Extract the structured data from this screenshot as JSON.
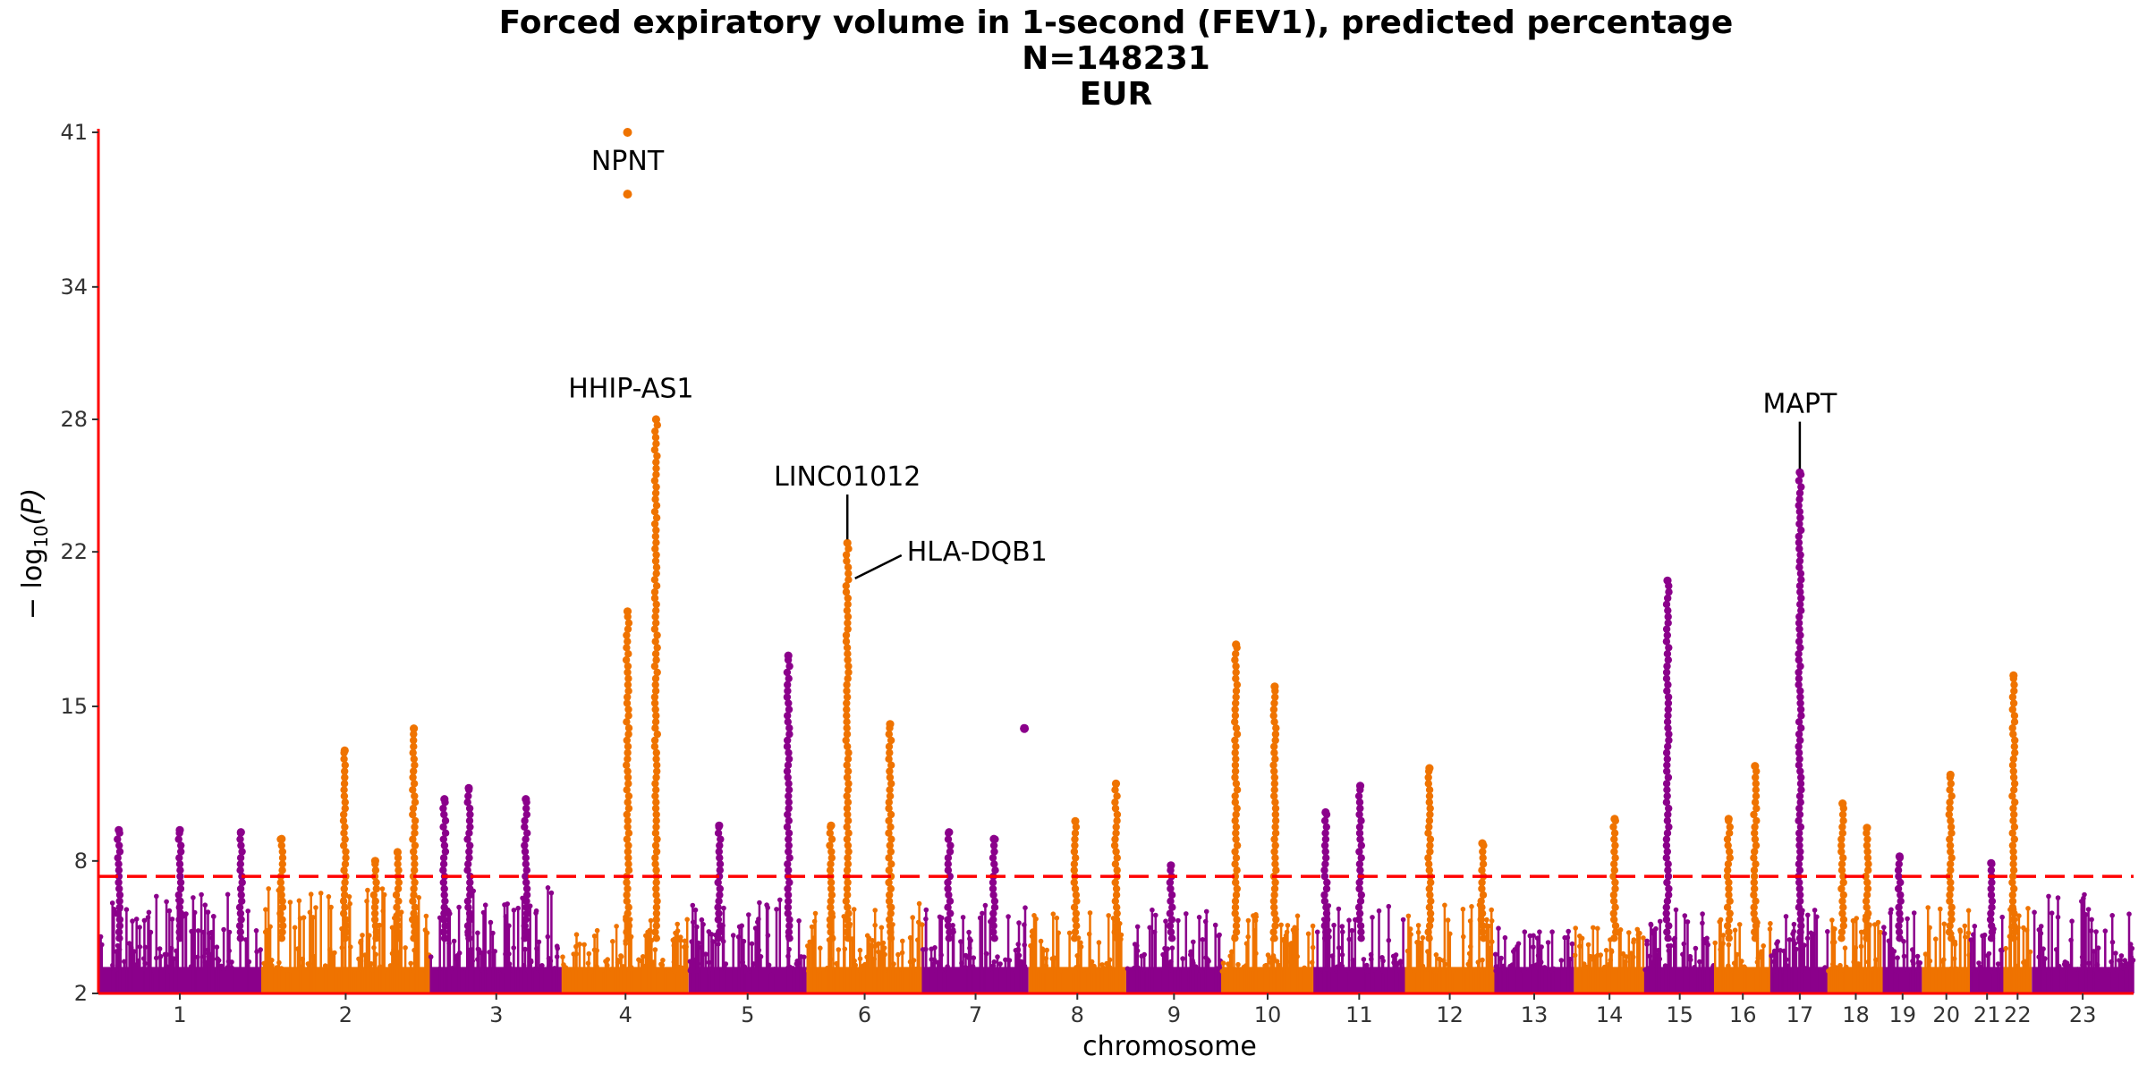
{
  "chart_data": {
    "type": "scatter",
    "subtype": "manhattan",
    "title": "Forced expiratory volume in 1-second (FEV1), predicted percentage",
    "subtitle_1": "N=148231",
    "subtitle_2": "EUR",
    "xlabel": "chromosome",
    "ylabel_main": "− log",
    "ylabel_sub": "10",
    "ylabel_tail": "(P)",
    "ylim": [
      2,
      41
    ],
    "yticks": [
      2,
      8,
      15,
      22,
      28,
      34,
      41
    ],
    "significance_threshold": 7.3,
    "threshold_style": "dashed",
    "colors": {
      "odd": "#8b008b",
      "even": "#ef7300",
      "threshold": "#ff0000",
      "axis": "#ff0000"
    },
    "chromosomes": [
      {
        "label": "1",
        "start": 0,
        "end": 0.08,
        "baseline": 6.5
      },
      {
        "label": "2",
        "start": 0.08,
        "end": 0.163,
        "baseline": 6.8
      },
      {
        "label": "3",
        "start": 0.163,
        "end": 0.228,
        "baseline": 6.8
      },
      {
        "label": "4",
        "start": 0.228,
        "end": 0.29,
        "baseline": 5.5
      },
      {
        "label": "5",
        "start": 0.29,
        "end": 0.348,
        "baseline": 6.5
      },
      {
        "label": "6",
        "start": 0.348,
        "end": 0.405,
        "baseline": 6.3
      },
      {
        "label": "7",
        "start": 0.405,
        "end": 0.457,
        "baseline": 6.2
      },
      {
        "label": "8",
        "start": 0.457,
        "end": 0.505,
        "baseline": 5.8
      },
      {
        "label": "9",
        "start": 0.505,
        "end": 0.552,
        "baseline": 5.8
      },
      {
        "label": "10",
        "start": 0.552,
        "end": 0.597,
        "baseline": 6.0
      },
      {
        "label": "11",
        "start": 0.597,
        "end": 0.642,
        "baseline": 6.0
      },
      {
        "label": "12",
        "start": 0.642,
        "end": 0.686,
        "baseline": 6.2
      },
      {
        "label": "13",
        "start": 0.686,
        "end": 0.725,
        "baseline": 5.0
      },
      {
        "label": "14",
        "start": 0.725,
        "end": 0.76,
        "baseline": 5.5
      },
      {
        "label": "15",
        "start": 0.76,
        "end": 0.794,
        "baseline": 5.8
      },
      {
        "label": "16",
        "start": 0.794,
        "end": 0.822,
        "baseline": 6.0
      },
      {
        "label": "17",
        "start": 0.822,
        "end": 0.85,
        "baseline": 5.8
      },
      {
        "label": "18",
        "start": 0.85,
        "end": 0.877,
        "baseline": 5.5
      },
      {
        "label": "19",
        "start": 0.877,
        "end": 0.896,
        "baseline": 6.0
      },
      {
        "label": "20",
        "start": 0.896,
        "end": 0.92,
        "baseline": 6.0
      },
      {
        "label": "21",
        "start": 0.92,
        "end": 0.936,
        "baseline": 5.5
      },
      {
        "label": "22",
        "start": 0.936,
        "end": 0.95,
        "baseline": 6.0
      },
      {
        "label": "23",
        "start": 0.95,
        "end": 1.0,
        "baseline": 6.5
      }
    ],
    "peaks": [
      {
        "chrom": "1",
        "pos": 0.01,
        "top": 9.4
      },
      {
        "chrom": "1",
        "pos": 0.04,
        "top": 9.4
      },
      {
        "chrom": "1",
        "pos": 0.07,
        "top": 9.3
      },
      {
        "chrom": "2",
        "pos": 0.09,
        "top": 9.0
      },
      {
        "chrom": "2",
        "pos": 0.121,
        "top": 13.0
      },
      {
        "chrom": "2",
        "pos": 0.136,
        "top": 8.0
      },
      {
        "chrom": "2",
        "pos": 0.147,
        "top": 8.4
      },
      {
        "chrom": "2",
        "pos": 0.155,
        "top": 14.0
      },
      {
        "chrom": "3",
        "pos": 0.17,
        "top": 10.8
      },
      {
        "chrom": "3",
        "pos": 0.182,
        "top": 11.3
      },
      {
        "chrom": "3",
        "pos": 0.21,
        "top": 10.8
      },
      {
        "chrom": "4",
        "pos": 0.26,
        "top": 19.3
      },
      {
        "chrom": "4",
        "pos": 0.274,
        "top": 28.0
      },
      {
        "chrom": "5",
        "pos": 0.305,
        "top": 9.6
      },
      {
        "chrom": "5",
        "pos": 0.339,
        "top": 17.3
      },
      {
        "chrom": "6",
        "pos": 0.36,
        "top": 9.6
      },
      {
        "chrom": "6",
        "pos": 0.368,
        "top": 22.4
      },
      {
        "chrom": "6",
        "pos": 0.389,
        "top": 14.2
      },
      {
        "chrom": "7",
        "pos": 0.418,
        "top": 9.3
      },
      {
        "chrom": "7",
        "pos": 0.44,
        "top": 9.0
      },
      {
        "chrom": "8",
        "pos": 0.48,
        "top": 9.8
      },
      {
        "chrom": "8",
        "pos": 0.5,
        "top": 11.5
      },
      {
        "chrom": "9",
        "pos": 0.527,
        "top": 7.8
      },
      {
        "chrom": "10",
        "pos": 0.559,
        "top": 17.8
      },
      {
        "chrom": "10",
        "pos": 0.578,
        "top": 15.9
      },
      {
        "chrom": "11",
        "pos": 0.603,
        "top": 10.2
      },
      {
        "chrom": "11",
        "pos": 0.62,
        "top": 11.4
      },
      {
        "chrom": "12",
        "pos": 0.654,
        "top": 12.2
      },
      {
        "chrom": "12",
        "pos": 0.68,
        "top": 8.8
      },
      {
        "chrom": "14",
        "pos": 0.745,
        "top": 9.9
      },
      {
        "chrom": "15",
        "pos": 0.771,
        "top": 20.7
      },
      {
        "chrom": "16",
        "pos": 0.801,
        "top": 9.9
      },
      {
        "chrom": "16",
        "pos": 0.814,
        "top": 12.3
      },
      {
        "chrom": "17",
        "pos": 0.836,
        "top": 25.6
      },
      {
        "chrom": "18",
        "pos": 0.857,
        "top": 10.6
      },
      {
        "chrom": "18",
        "pos": 0.869,
        "top": 9.5
      },
      {
        "chrom": "19",
        "pos": 0.885,
        "top": 8.2
      },
      {
        "chrom": "20",
        "pos": 0.91,
        "top": 11.9
      },
      {
        "chrom": "21",
        "pos": 0.93,
        "top": 7.9
      },
      {
        "chrom": "22",
        "pos": 0.941,
        "top": 16.4
      }
    ],
    "outliers": [
      {
        "chrom": "4",
        "pos": 0.26,
        "value": 41.0
      },
      {
        "chrom": "4",
        "pos": 0.26,
        "value": 38.2
      },
      {
        "chrom": "7",
        "pos": 0.455,
        "value": 14.0
      }
    ],
    "annotations": [
      {
        "label": "NPNT",
        "pos": 0.26,
        "value": 41.0
      },
      {
        "label": "HHIP-AS1",
        "pos": 0.274,
        "value": 28.0
      },
      {
        "label": "LINC01012",
        "pos": 0.368,
        "value": 22.4
      },
      {
        "label": "HLA-DQB1",
        "pos": 0.37,
        "value": 21.0
      },
      {
        "label": "MAPT",
        "pos": 0.836,
        "value": 25.6
      }
    ]
  }
}
